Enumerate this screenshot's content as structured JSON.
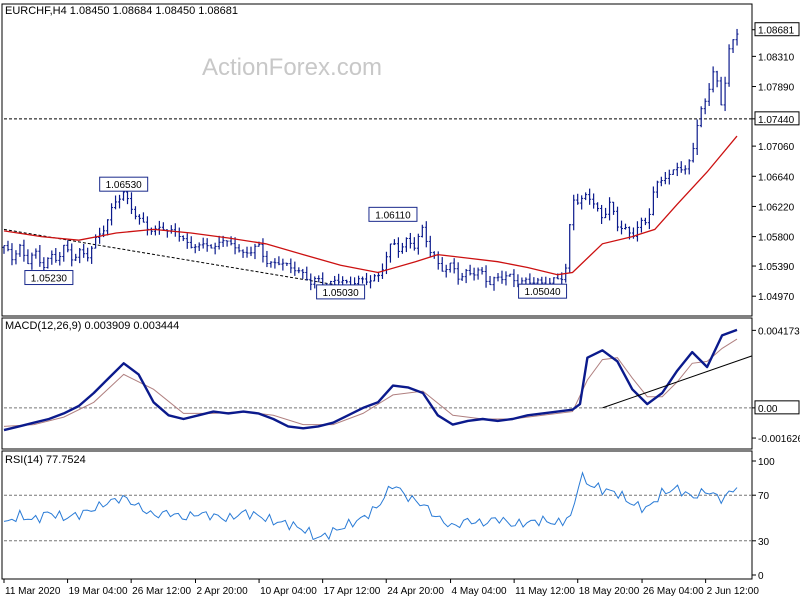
{
  "chart_data": [
    {
      "type": "candlestick",
      "panel": "price",
      "header": "EURCHF,H4  1.08450 1.08684 1.08450 1.08681",
      "watermark": "ActionForex.com",
      "ylim": [
        1.0475,
        1.089
      ],
      "y_ticks": [
        "1.08681",
        "1.08310",
        "1.07890",
        "1.07440",
        "1.07060",
        "1.06640",
        "1.06220",
        "1.05800",
        "1.05390",
        "1.04970"
      ],
      "y_tick_values": [
        1.08681,
        1.0831,
        1.0789,
        1.0744,
        1.0706,
        1.0664,
        1.0622,
        1.058,
        1.0539,
        1.0497
      ],
      "highlight_ticks": [
        "1.08681",
        "1.07440"
      ],
      "horizontal_level": 1.0744,
      "annotations": [
        {
          "label": "1.06530",
          "x": 0.16,
          "y": 1.0653
        },
        {
          "label": "1.05230",
          "x": 0.06,
          "y": 1.0523
        },
        {
          "label": "1.06110",
          "x": 0.52,
          "y": 1.0611
        },
        {
          "label": "1.05030",
          "x": 0.45,
          "y": 1.0503
        },
        {
          "label": "1.05040",
          "x": 0.72,
          "y": 1.0504
        }
      ],
      "close_path": [
        [
          0.0,
          1.0565
        ],
        [
          0.01,
          1.0548
        ],
        [
          0.02,
          1.0572
        ],
        [
          0.03,
          1.054
        ],
        [
          0.04,
          1.056
        ],
        [
          0.05,
          1.0538
        ],
        [
          0.06,
          1.0555
        ],
        [
          0.07,
          1.0545
        ],
        [
          0.08,
          1.0565
        ],
        [
          0.09,
          1.0552
        ],
        [
          0.1,
          1.056
        ],
        [
          0.11,
          1.0548
        ],
        [
          0.12,
          1.057
        ],
        [
          0.13,
          1.059
        ],
        [
          0.14,
          1.0605
        ],
        [
          0.15,
          1.063
        ],
        [
          0.16,
          1.064
        ],
        [
          0.17,
          1.0625
        ],
        [
          0.18,
          1.06
        ],
        [
          0.19,
          1.0595
        ],
        [
          0.2,
          1.0585
        ],
        [
          0.21,
          1.06
        ],
        [
          0.22,
          1.058
        ],
        [
          0.23,
          1.059
        ],
        [
          0.24,
          1.0575
        ],
        [
          0.25,
          1.057
        ],
        [
          0.26,
          1.056
        ],
        [
          0.27,
          1.0575
        ],
        [
          0.28,
          1.056
        ],
        [
          0.29,
          1.058
        ],
        [
          0.3,
          1.0565
        ],
        [
          0.31,
          1.057
        ],
        [
          0.32,
          1.0555
        ],
        [
          0.33,
          1.056
        ],
        [
          0.34,
          1.0565
        ],
        [
          0.35,
          1.055
        ],
        [
          0.36,
          1.054
        ],
        [
          0.37,
          1.0545
        ],
        [
          0.38,
          1.0535
        ],
        [
          0.39,
          1.054
        ],
        [
          0.4,
          1.0525
        ],
        [
          0.41,
          1.0515
        ],
        [
          0.42,
          1.052
        ],
        [
          0.43,
          1.051
        ],
        [
          0.44,
          1.0515
        ],
        [
          0.45,
          1.052
        ],
        [
          0.46,
          1.0512
        ],
        [
          0.47,
          1.0522
        ],
        [
          0.48,
          1.0515
        ],
        [
          0.49,
          1.052
        ],
        [
          0.5,
          1.0525
        ],
        [
          0.51,
          1.055
        ],
        [
          0.52,
          1.057
        ],
        [
          0.53,
          1.056
        ],
        [
          0.54,
          1.058
        ],
        [
          0.55,
          1.0565
        ],
        [
          0.56,
          1.059
        ],
        [
          0.57,
          1.056
        ],
        [
          0.58,
          1.0545
        ],
        [
          0.59,
          1.053
        ],
        [
          0.6,
          1.054
        ],
        [
          0.61,
          1.052
        ],
        [
          0.62,
          1.0535
        ],
        [
          0.63,
          1.0525
        ],
        [
          0.64,
          1.053
        ],
        [
          0.65,
          1.0515
        ],
        [
          0.66,
          1.0525
        ],
        [
          0.67,
          1.052
        ],
        [
          0.68,
          1.0525
        ],
        [
          0.69,
          1.0515
        ],
        [
          0.7,
          1.052
        ],
        [
          0.71,
          1.0512
        ],
        [
          0.72,
          1.0518
        ],
        [
          0.73,
          1.0515
        ],
        [
          0.74,
          1.0522
        ],
        [
          0.75,
          1.052
        ],
        [
          0.76,
          1.064
        ],
        [
          0.77,
          1.0625
        ],
        [
          0.78,
          1.064
        ],
        [
          0.79,
          1.062
        ],
        [
          0.8,
          1.061
        ],
        [
          0.81,
          1.0625
        ],
        [
          0.82,
          1.0595
        ],
        [
          0.83,
          1.059
        ],
        [
          0.84,
          1.0585
        ],
        [
          0.85,
          1.0595
        ],
        [
          0.86,
          1.06
        ],
        [
          0.87,
          1.065
        ],
        [
          0.88,
          1.0665
        ],
        [
          0.89,
          1.066
        ],
        [
          0.9,
          1.068
        ],
        [
          0.91,
          1.067
        ],
        [
          0.92,
          1.07
        ],
        [
          0.93,
          1.0745
        ],
        [
          0.94,
          1.078
        ],
        [
          0.95,
          1.0815
        ],
        [
          0.96,
          1.076
        ],
        [
          0.97,
          1.084
        ],
        [
          0.975,
          1.0855
        ],
        [
          0.98,
          1.0868
        ]
      ],
      "ma_path": [
        [
          0.0,
          1.0588
        ],
        [
          0.05,
          1.058
        ],
        [
          0.1,
          1.0575
        ],
        [
          0.15,
          1.0585
        ],
        [
          0.2,
          1.059
        ],
        [
          0.25,
          1.0585
        ],
        [
          0.3,
          1.0578
        ],
        [
          0.35,
          1.057
        ],
        [
          0.4,
          1.0555
        ],
        [
          0.45,
          1.054
        ],
        [
          0.5,
          1.053
        ],
        [
          0.55,
          1.0545
        ],
        [
          0.58,
          1.0555
        ],
        [
          0.62,
          1.055
        ],
        [
          0.66,
          1.0545
        ],
        [
          0.7,
          1.0537
        ],
        [
          0.74,
          1.0527
        ],
        [
          0.76,
          1.053
        ],
        [
          0.8,
          1.057
        ],
        [
          0.84,
          1.058
        ],
        [
          0.87,
          1.059
        ],
        [
          0.9,
          1.0625
        ],
        [
          0.94,
          1.067
        ],
        [
          0.98,
          1.072
        ]
      ],
      "trend_line": [
        [
          0.0,
          1.059
        ],
        [
          0.46,
          1.051
        ]
      ]
    },
    {
      "type": "line",
      "panel": "macd",
      "header": "MACD(12,26,9) 0.003909 0.003444",
      "ylim": [
        -0.002,
        0.0043
      ],
      "y_ticks": [
        "0.004173",
        "0.00",
        "-0.001626"
      ],
      "y_tick_values": [
        0.004173,
        0.0,
        -0.001626
      ],
      "highlight_ticks": [
        "0.00"
      ],
      "series_main": [
        [
          0.0,
          -0.0012
        ],
        [
          0.02,
          -0.001
        ],
        [
          0.04,
          -0.0008
        ],
        [
          0.06,
          -0.0006
        ],
        [
          0.08,
          -0.0003
        ],
        [
          0.1,
          0.0001
        ],
        [
          0.12,
          0.0008
        ],
        [
          0.14,
          0.0016
        ],
        [
          0.16,
          0.0024
        ],
        [
          0.18,
          0.0018
        ],
        [
          0.2,
          0.0003
        ],
        [
          0.22,
          -0.0004
        ],
        [
          0.24,
          -0.0006
        ],
        [
          0.26,
          -0.0004
        ],
        [
          0.28,
          -0.0002
        ],
        [
          0.3,
          -0.0003
        ],
        [
          0.32,
          -0.0002
        ],
        [
          0.34,
          -0.0003
        ],
        [
          0.36,
          -0.0006
        ],
        [
          0.38,
          -0.001
        ],
        [
          0.4,
          -0.0011
        ],
        [
          0.42,
          -0.001
        ],
        [
          0.44,
          -0.0008
        ],
        [
          0.46,
          -0.0004
        ],
        [
          0.48,
          0.0
        ],
        [
          0.5,
          0.0003
        ],
        [
          0.52,
          0.0012
        ],
        [
          0.54,
          0.0011
        ],
        [
          0.56,
          0.0008
        ],
        [
          0.58,
          -0.0004
        ],
        [
          0.6,
          -0.0009
        ],
        [
          0.62,
          -0.0007
        ],
        [
          0.64,
          -0.0006
        ],
        [
          0.66,
          -0.0007
        ],
        [
          0.68,
          -0.0006
        ],
        [
          0.7,
          -0.0004
        ],
        [
          0.72,
          -0.0003
        ],
        [
          0.74,
          -0.0002
        ],
        [
          0.76,
          -0.0001
        ],
        [
          0.77,
          0.0002
        ],
        [
          0.78,
          0.0027
        ],
        [
          0.8,
          0.0031
        ],
        [
          0.82,
          0.0025
        ],
        [
          0.84,
          0.001
        ],
        [
          0.86,
          0.0002
        ],
        [
          0.88,
          0.0008
        ],
        [
          0.9,
          0.002
        ],
        [
          0.92,
          0.003
        ],
        [
          0.94,
          0.0022
        ],
        [
          0.96,
          0.0039
        ],
        [
          0.98,
          0.0042
        ]
      ],
      "series_signal": [
        [
          0.0,
          -0.001
        ],
        [
          0.04,
          -0.0009
        ],
        [
          0.08,
          -0.0005
        ],
        [
          0.12,
          0.0003
        ],
        [
          0.16,
          0.0018
        ],
        [
          0.2,
          0.001
        ],
        [
          0.24,
          -0.0003
        ],
        [
          0.28,
          -0.0003
        ],
        [
          0.32,
          -0.0002
        ],
        [
          0.36,
          -0.0004
        ],
        [
          0.4,
          -0.0009
        ],
        [
          0.44,
          -0.0009
        ],
        [
          0.48,
          -0.0003
        ],
        [
          0.52,
          0.0007
        ],
        [
          0.56,
          0.0009
        ],
        [
          0.6,
          -0.0004
        ],
        [
          0.64,
          -0.0006
        ],
        [
          0.68,
          -0.0006
        ],
        [
          0.72,
          -0.0004
        ],
        [
          0.76,
          -0.0002
        ],
        [
          0.78,
          0.0015
        ],
        [
          0.8,
          0.0026
        ],
        [
          0.82,
          0.0027
        ],
        [
          0.84,
          0.0016
        ],
        [
          0.86,
          0.0006
        ],
        [
          0.88,
          0.0006
        ],
        [
          0.9,
          0.0014
        ],
        [
          0.92,
          0.0024
        ],
        [
          0.94,
          0.0025
        ],
        [
          0.96,
          0.0032
        ],
        [
          0.98,
          0.0037
        ]
      ],
      "trend_line": [
        [
          0.8,
          0.0
        ],
        [
          1.0,
          0.0028
        ]
      ]
    },
    {
      "type": "line",
      "panel": "rsi",
      "header": "RSI(14) 77.7524",
      "ylim": [
        0,
        100
      ],
      "y_ticks": [
        "100",
        "70",
        "30",
        "0"
      ],
      "y_tick_values": [
        100,
        70,
        30,
        0
      ],
      "dashed_levels": [
        70,
        30
      ],
      "series": [
        [
          0.0,
          45
        ],
        [
          0.02,
          52
        ],
        [
          0.04,
          48
        ],
        [
          0.06,
          55
        ],
        [
          0.08,
          50
        ],
        [
          0.1,
          53
        ],
        [
          0.12,
          58
        ],
        [
          0.14,
          64
        ],
        [
          0.16,
          68
        ],
        [
          0.18,
          60
        ],
        [
          0.2,
          52
        ],
        [
          0.22,
          55
        ],
        [
          0.24,
          50
        ],
        [
          0.26,
          54
        ],
        [
          0.28,
          52
        ],
        [
          0.3,
          49
        ],
        [
          0.32,
          55
        ],
        [
          0.34,
          52
        ],
        [
          0.36,
          47
        ],
        [
          0.38,
          45
        ],
        [
          0.4,
          40
        ],
        [
          0.42,
          32
        ],
        [
          0.44,
          38
        ],
        [
          0.46,
          44
        ],
        [
          0.48,
          50
        ],
        [
          0.5,
          60
        ],
        [
          0.52,
          80
        ],
        [
          0.54,
          68
        ],
        [
          0.56,
          62
        ],
        [
          0.58,
          50
        ],
        [
          0.6,
          42
        ],
        [
          0.62,
          48
        ],
        [
          0.64,
          45
        ],
        [
          0.66,
          50
        ],
        [
          0.68,
          44
        ],
        [
          0.7,
          46
        ],
        [
          0.72,
          48
        ],
        [
          0.74,
          45
        ],
        [
          0.76,
          52
        ],
        [
          0.77,
          88
        ],
        [
          0.78,
          80
        ],
        [
          0.8,
          75
        ],
        [
          0.82,
          72
        ],
        [
          0.84,
          62
        ],
        [
          0.86,
          58
        ],
        [
          0.88,
          72
        ],
        [
          0.9,
          76
        ],
        [
          0.92,
          68
        ],
        [
          0.94,
          74
        ],
        [
          0.96,
          66
        ],
        [
          0.98,
          78
        ]
      ]
    }
  ],
  "x_axis": {
    "tick_labels": [
      "11 Mar 2020",
      "19 Mar 04:00",
      "26 Mar 12:00",
      "2 Apr 20:00",
      "10 Apr 04:00",
      "17 Apr 12:00",
      "24 Apr 20:00",
      "4 May 04:00",
      "11 May 12:00",
      "18 May 20:00",
      "26 May 04:00",
      "2 Jun 12:00"
    ],
    "tick_positions": [
      0.0,
      0.085,
      0.17,
      0.256,
      0.341,
      0.426,
      0.511,
      0.597,
      0.682,
      0.767,
      0.853,
      0.938
    ]
  },
  "colors": {
    "candle": "#0b1a8c",
    "ma": "#cc1111",
    "macd_main": "#0b1a8c",
    "macd_signal": "#b08080",
    "rsi": "#2a7bd6",
    "grid_dash": "#6a6a6a",
    "watermark": "#c8c8c8"
  }
}
